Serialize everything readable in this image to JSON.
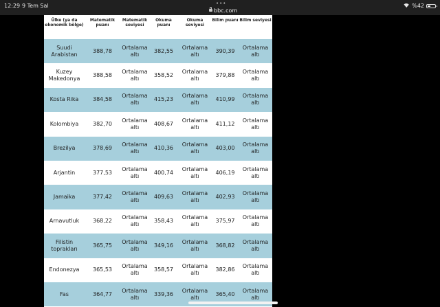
{
  "status_bar": {
    "time": "12:29",
    "date": "9 Tem Sal",
    "url": "bbc.com",
    "battery_text": "%42",
    "battery_level": 0.42
  },
  "table": {
    "headers": [
      "Ülke (ya da ekonomik bölge)",
      "Matematik puanı",
      "Matematik seviyesi",
      "Okuma puanı",
      "Okuma seviyesi",
      "Bilim puanı",
      "Bilim seviyesi"
    ],
    "rows": [
      {
        "country": "Suudi Arabistan",
        "math_score": "388,78",
        "math_level": "Ortalama altı",
        "reading_score": "382,55",
        "reading_level": "Ortalama altı",
        "science_score": "390,39",
        "science_level": "Ortalama altı",
        "shaded": true
      },
      {
        "country": "Kuzey Makedonya",
        "math_score": "388,58",
        "math_level": "Ortalama altı",
        "reading_score": "358,52",
        "reading_level": "Ortalama altı",
        "science_score": "379,88",
        "science_level": "Ortalama altı",
        "shaded": false
      },
      {
        "country": "Kosta Rika",
        "math_score": "384,58",
        "math_level": "Ortalama altı",
        "reading_score": "415,23",
        "reading_level": "Ortalama altı",
        "science_score": "410,99",
        "science_level": "Ortalama altı",
        "shaded": true
      },
      {
        "country": "Kolombiya",
        "math_score": "382,70",
        "math_level": "Ortalama altı",
        "reading_score": "408,67",
        "reading_level": "Ortalama altı",
        "science_score": "411,12",
        "science_level": "Ortalama altı",
        "shaded": false
      },
      {
        "country": "Brezilya",
        "math_score": "378,69",
        "math_level": "Ortalama altı",
        "reading_score": "410,36",
        "reading_level": "Ortalama altı",
        "science_score": "403,00",
        "science_level": "Ortalama altı",
        "shaded": true
      },
      {
        "country": "Arjantin",
        "math_score": "377,53",
        "math_level": "Ortalama altı",
        "reading_score": "400,74",
        "reading_level": "Ortalama altı",
        "science_score": "406,19",
        "science_level": "Ortalama altı",
        "shaded": false
      },
      {
        "country": "Jamaika",
        "math_score": "377,42",
        "math_level": "Ortalama altı",
        "reading_score": "409,63",
        "reading_level": "Ortalama altı",
        "science_score": "402,93",
        "science_level": "Ortalama altı",
        "shaded": true
      },
      {
        "country": "Arnavutluk",
        "math_score": "368,22",
        "math_level": "Ortalama altı",
        "reading_score": "358,43",
        "reading_level": "Ortalama altı",
        "science_score": "375,97",
        "science_level": "Ortalama altı",
        "shaded": false
      },
      {
        "country": "Filistin toprakları",
        "math_score": "365,75",
        "math_level": "Ortalama altı",
        "reading_score": "349,16",
        "reading_level": "Ortalama altı",
        "science_score": "368,82",
        "science_level": "Ortalama altı",
        "shaded": true
      },
      {
        "country": "Endonezya",
        "math_score": "365,53",
        "math_level": "Ortalama altı",
        "reading_score": "358,57",
        "reading_level": "Ortalama altı",
        "science_score": "382,86",
        "science_level": "Ortalama altı",
        "shaded": false
      },
      {
        "country": "Fas",
        "math_score": "364,77",
        "math_level": "Ortalama altı",
        "reading_score": "339,36",
        "reading_level": "Ortalama altı",
        "science_score": "365,40",
        "science_level": "Ortalama altı",
        "shaded": true
      }
    ]
  },
  "colors": {
    "row_shade": "#a6cfdc",
    "status_bar_bg": "#202020"
  },
  "icons": [
    "lock-icon",
    "wifi-icon",
    "battery-icon"
  ]
}
